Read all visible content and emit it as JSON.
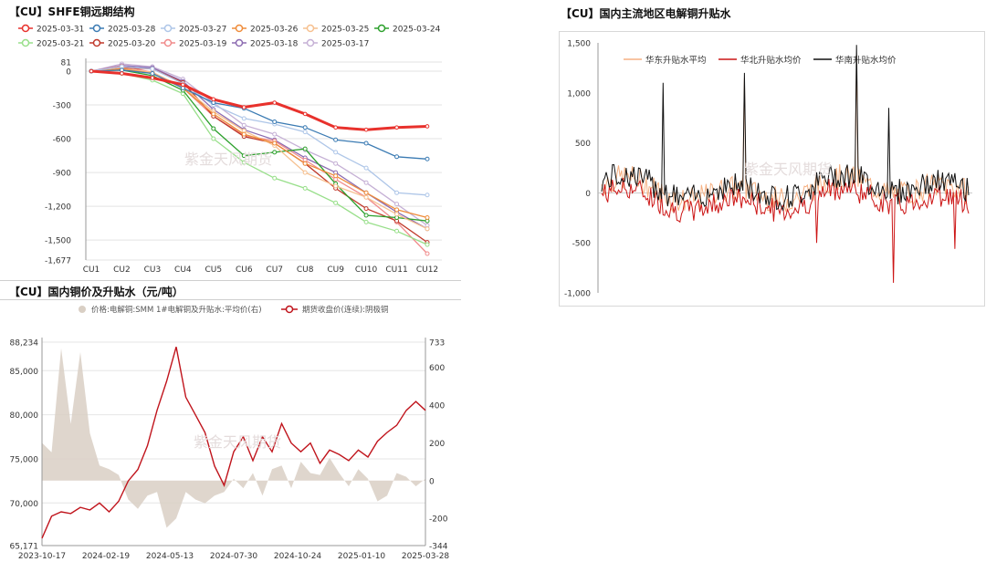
{
  "panels": {
    "left_top_title": "【CU】SHFE铜远期结构",
    "left_bottom_title": "【CU】国内铜价及升贴水（元/吨）",
    "right_title": "【CU】国内主流地区电解铜升贴水",
    "watermark": "紫金天风期货"
  },
  "chart_data": [
    {
      "id": "forward_curve",
      "type": "line",
      "title": "【CU】SHFE铜远期结构",
      "categories": [
        "CU1",
        "CU2",
        "CU3",
        "CU4",
        "CU5",
        "CU6",
        "CU7",
        "CU8",
        "CU9",
        "CU10",
        "CU11",
        "CU12"
      ],
      "y_ticks": [
        "81",
        "0",
        "-300",
        "-600",
        "-900",
        "-1,200",
        "-1,500",
        "-1,677"
      ],
      "ylim": [
        -1677,
        81
      ],
      "series": [
        {
          "name": "2025-03-31",
          "color": "#e8312c",
          "values": [
            0,
            -20,
            -60,
            -120,
            -250,
            -320,
            -280,
            -380,
            -500,
            -520,
            -500,
            -490
          ]
        },
        {
          "name": "2025-03-28",
          "color": "#3b7bb3",
          "values": [
            0,
            10,
            -20,
            -150,
            -280,
            -330,
            -450,
            -500,
            -610,
            -640,
            -760,
            -780
          ]
        },
        {
          "name": "2025-03-27",
          "color": "#aec6e8",
          "values": [
            0,
            40,
            20,
            -110,
            -300,
            -420,
            -470,
            -540,
            -720,
            -860,
            -1080,
            -1100
          ]
        },
        {
          "name": "2025-03-26",
          "color": "#ef8c3a",
          "values": [
            0,
            20,
            -20,
            -150,
            -380,
            -560,
            -640,
            -820,
            -930,
            -1080,
            -1230,
            -1300
          ]
        },
        {
          "name": "2025-03-25",
          "color": "#f6c08f",
          "values": [
            0,
            25,
            -10,
            -140,
            -360,
            -530,
            -660,
            -900,
            -1020,
            -1120,
            -1270,
            -1400
          ]
        },
        {
          "name": "2025-03-24",
          "color": "#2ca02c",
          "values": [
            0,
            10,
            -40,
            -170,
            -510,
            -750,
            -720,
            -690,
            -1000,
            -1280,
            -1300,
            -1330
          ]
        },
        {
          "name": "2025-03-21",
          "color": "#98df8a",
          "values": [
            0,
            -20,
            -80,
            -200,
            -600,
            -810,
            -950,
            -1040,
            -1170,
            -1340,
            -1420,
            -1540
          ]
        },
        {
          "name": "2025-03-20",
          "color": "#c0392b",
          "values": [
            0,
            30,
            20,
            -100,
            -400,
            -580,
            -640,
            -820,
            -1040,
            -1220,
            -1330,
            -1520
          ]
        },
        {
          "name": "2025-03-19",
          "color": "#f08b8b",
          "values": [
            0,
            45,
            -10,
            -150,
            -400,
            -570,
            -620,
            -790,
            -960,
            -1120,
            -1340,
            -1620
          ]
        },
        {
          "name": "2025-03-18",
          "color": "#8c6bb1",
          "values": [
            0,
            50,
            30,
            -90,
            -340,
            -520,
            -610,
            -770,
            -900,
            -1080,
            -1250,
            -1400
          ]
        },
        {
          "name": "2025-03-17",
          "color": "#c5b0d5",
          "values": [
            0,
            65,
            40,
            -70,
            -280,
            -480,
            -560,
            -700,
            -820,
            -990,
            -1180,
            -1370
          ]
        }
      ]
    },
    {
      "id": "price_and_basis",
      "type": "line",
      "title": "【CU】国内铜价及升贴水（元/吨）",
      "legend": [
        {
          "name": "价格:电解铜:SMM 1#电解铜及升贴水:平均价(右)",
          "color": "#d9cfc4"
        },
        {
          "name": "期货收盘价(连续):阴极铜",
          "color": "#c0141c"
        }
      ],
      "x_ticks": [
        "2023-10-17",
        "2024-02-19",
        "2024-05-13",
        "2024-07-30",
        "2024-10-24",
        "2025-01-10",
        "2025-03-28"
      ],
      "left_ticks": [
        "88,234",
        "85,000",
        "80,000",
        "75,000",
        "70,000",
        "65,171"
      ],
      "left_ylim": [
        65171,
        88234
      ],
      "right_ticks": [
        "733",
        "600",
        "400",
        "200",
        "0",
        "-200",
        "-344"
      ],
      "right_ylim": [
        -344,
        733
      ],
      "price_x": [
        0,
        1,
        2,
        3,
        4,
        5,
        6,
        7,
        8,
        9,
        10,
        11,
        12,
        13,
        14,
        15,
        16,
        17,
        18,
        19,
        20,
        21,
        22,
        23,
        24,
        25,
        26,
        27,
        28,
        29,
        30,
        31,
        32,
        33,
        34,
        35,
        36,
        37,
        38,
        39,
        40
      ],
      "price_values": [
        66000,
        68500,
        69000,
        68800,
        69500,
        69200,
        70000,
        69000,
        70200,
        72500,
        73800,
        76500,
        80500,
        83800,
        87700,
        82000,
        80000,
        78000,
        74200,
        72000,
        75800,
        77500,
        74800,
        77500,
        75800,
        79000,
        76800,
        75800,
        76800,
        74500,
        76000,
        75500,
        74800,
        76000,
        75200,
        77000,
        78000,
        78800,
        80500,
        81500,
        80500
      ],
      "basis_x": [
        0,
        1,
        2,
        3,
        4,
        5,
        6,
        7,
        8,
        9,
        10,
        11,
        12,
        13,
        14,
        15,
        16,
        17,
        18,
        19,
        20,
        21,
        22,
        23,
        24,
        25,
        26,
        27,
        28,
        29,
        30,
        31,
        32,
        33,
        34,
        35,
        36,
        37,
        38,
        39,
        40
      ],
      "basis_values": [
        200,
        150,
        700,
        300,
        680,
        250,
        80,
        60,
        30,
        -100,
        -150,
        -80,
        -60,
        -250,
        -200,
        -60,
        -100,
        -120,
        -80,
        -60,
        10,
        -40,
        40,
        -80,
        60,
        80,
        -40,
        100,
        40,
        30,
        120,
        40,
        -30,
        60,
        10,
        -110,
        -80,
        40,
        20,
        -30,
        10
      ]
    },
    {
      "id": "regional_basis",
      "type": "line",
      "title": "【CU】国内主流地区电解铜升贴水",
      "y_ticks": [
        "1,500",
        "1,000",
        "500",
        "0",
        "-500",
        "-1,000"
      ],
      "ylim": [
        -1000,
        1500
      ],
      "series": [
        {
          "name": "华东升贴水平均",
          "color": "#f6b183"
        },
        {
          "name": "华北升贴水均价",
          "color": "#cc1515"
        },
        {
          "name": "华南升贴水均价",
          "color": "#111111"
        }
      ]
    }
  ]
}
